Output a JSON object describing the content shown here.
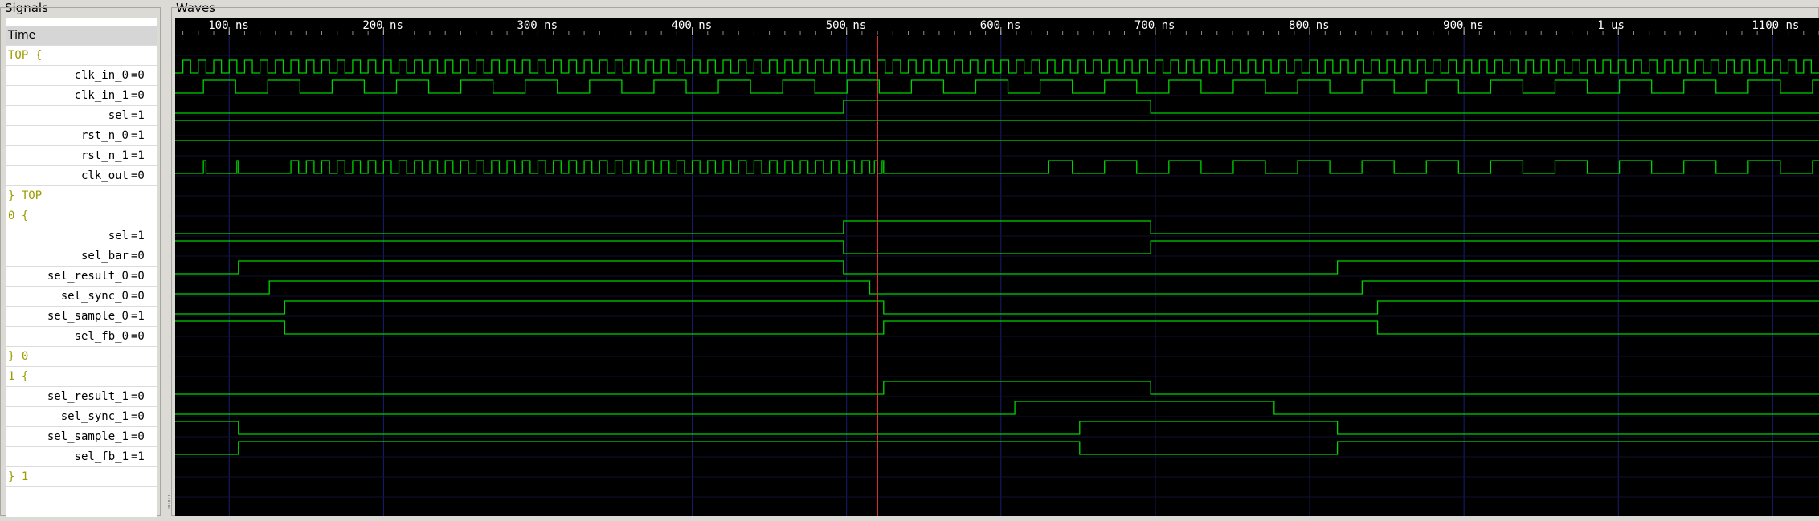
{
  "panels": {
    "signals_title": "Signals",
    "waves_title": "Waves"
  },
  "time_header": "Time",
  "signal_rows": [
    {
      "kind": "comment",
      "text": "TOP {"
    },
    {
      "kind": "signal",
      "name": "clk_in_0",
      "value": "=0"
    },
    {
      "kind": "signal",
      "name": "clk_in_1",
      "value": "=0"
    },
    {
      "kind": "signal",
      "name": "sel",
      "value": "=1"
    },
    {
      "kind": "signal",
      "name": "rst_n_0",
      "value": "=1"
    },
    {
      "kind": "signal",
      "name": "rst_n_1",
      "value": "=1"
    },
    {
      "kind": "signal",
      "name": "clk_out",
      "value": "=0"
    },
    {
      "kind": "comment",
      "text": "} TOP"
    },
    {
      "kind": "comment",
      "text": "0 {"
    },
    {
      "kind": "signal",
      "name": "sel",
      "value": "=1"
    },
    {
      "kind": "signal",
      "name": "sel_bar",
      "value": "=0"
    },
    {
      "kind": "signal",
      "name": "sel_result_0",
      "value": "=0"
    },
    {
      "kind": "signal",
      "name": "sel_sync_0",
      "value": "=0"
    },
    {
      "kind": "signal",
      "name": "sel_sample_0",
      "value": "=1"
    },
    {
      "kind": "signal",
      "name": "sel_fb_0",
      "value": "=0"
    },
    {
      "kind": "comment",
      "text": "} 0"
    },
    {
      "kind": "comment",
      "text": "1 {"
    },
    {
      "kind": "signal",
      "name": "sel_result_1",
      "value": "=0"
    },
    {
      "kind": "signal",
      "name": "sel_sync_1",
      "value": "=0"
    },
    {
      "kind": "signal",
      "name": "sel_sample_1",
      "value": "=0"
    },
    {
      "kind": "signal",
      "name": "sel_fb_1",
      "value": "=1"
    },
    {
      "kind": "comment",
      "text": "} 1"
    }
  ],
  "timeline": {
    "unit": "ns",
    "view_start_ns": 65,
    "view_end_ns": 1130,
    "cursor_ns": 520,
    "major_ticks": [
      {
        "t": 100,
        "label": "100 ns"
      },
      {
        "t": 200,
        "label": "200 ns"
      },
      {
        "t": 300,
        "label": "300 ns"
      },
      {
        "t": 400,
        "label": "400 ns"
      },
      {
        "t": 500,
        "label": "500 ns"
      },
      {
        "t": 600,
        "label": "600 ns"
      },
      {
        "t": 700,
        "label": "700 ns"
      },
      {
        "t": 800,
        "label": "800 ns"
      },
      {
        "t": 900,
        "label": "900 ns"
      },
      {
        "t": 1000,
        "label": "1 us"
      },
      {
        "t": 1100,
        "label": "1100 ns"
      }
    ]
  },
  "waveforms": [
    {
      "row": 1,
      "type": "clock",
      "period_ns": 10,
      "phase_ns": 0
    },
    {
      "row": 2,
      "type": "clock",
      "period_ns": 41.7,
      "phase_ns": 83.3
    },
    {
      "row": 3,
      "type": "edges",
      "init": 0,
      "edges_ns": [
        498,
        697
      ]
    },
    {
      "row": 4,
      "type": "edges",
      "init": 1,
      "edges_ns": []
    },
    {
      "row": 5,
      "type": "edges",
      "init": 1,
      "edges_ns": []
    },
    {
      "row": 6,
      "type": "segments",
      "parts": [
        {
          "from": 65,
          "to": 85,
          "mode": "clock",
          "period_ns": 41.7,
          "phase_ns": 83.3
        },
        {
          "from": 85,
          "to": 105,
          "mode": "const",
          "level": 0
        },
        {
          "from": 105,
          "to": 106,
          "mode": "const",
          "level": 1
        },
        {
          "from": 106,
          "to": 135,
          "mode": "const",
          "level": 0
        },
        {
          "from": 135,
          "to": 518,
          "mode": "clock",
          "period_ns": 10,
          "phase_ns": 0
        },
        {
          "from": 518,
          "to": 520,
          "mode": "const",
          "level": 1
        },
        {
          "from": 520,
          "to": 523,
          "mode": "const",
          "level": 0
        },
        {
          "from": 523,
          "to": 524,
          "mode": "const",
          "level": 1
        },
        {
          "from": 524,
          "to": 631,
          "mode": "const",
          "level": 0
        },
        {
          "from": 631,
          "to": 1130,
          "mode": "clock",
          "period_ns": 41.7,
          "phase_ns": 83.3
        }
      ]
    },
    {
      "row": 9,
      "type": "edges",
      "init": 0,
      "edges_ns": [
        498,
        697
      ]
    },
    {
      "row": 10,
      "type": "edges",
      "init": 1,
      "edges_ns": [
        498,
        697
      ]
    },
    {
      "row": 11,
      "type": "edges",
      "init": 0,
      "edges_ns": [
        106,
        498,
        818
      ]
    },
    {
      "row": 12,
      "type": "edges",
      "init": 0,
      "edges_ns": [
        126,
        515,
        834
      ]
    },
    {
      "row": 13,
      "type": "edges",
      "init": 0,
      "edges_ns": [
        136,
        524,
        844
      ]
    },
    {
      "row": 14,
      "type": "edges",
      "init": 1,
      "edges_ns": [
        136,
        524,
        844
      ]
    },
    {
      "row": 17,
      "type": "edges",
      "init": 0,
      "edges_ns": [
        524,
        697
      ]
    },
    {
      "row": 18,
      "type": "edges",
      "init": 0,
      "edges_ns": [
        609,
        777
      ]
    },
    {
      "row": 19,
      "type": "edges",
      "init": 1,
      "edges_ns": [
        106,
        651,
        818
      ]
    },
    {
      "row": 20,
      "type": "edges",
      "init": 0,
      "edges_ns": [
        106,
        651,
        818
      ]
    }
  ],
  "colors": {
    "wave": "#00d400",
    "cursor": "#ff3333",
    "grid": "#1c1c6e",
    "wave_bg": "#000000",
    "comment_text": "#9c9c00"
  }
}
